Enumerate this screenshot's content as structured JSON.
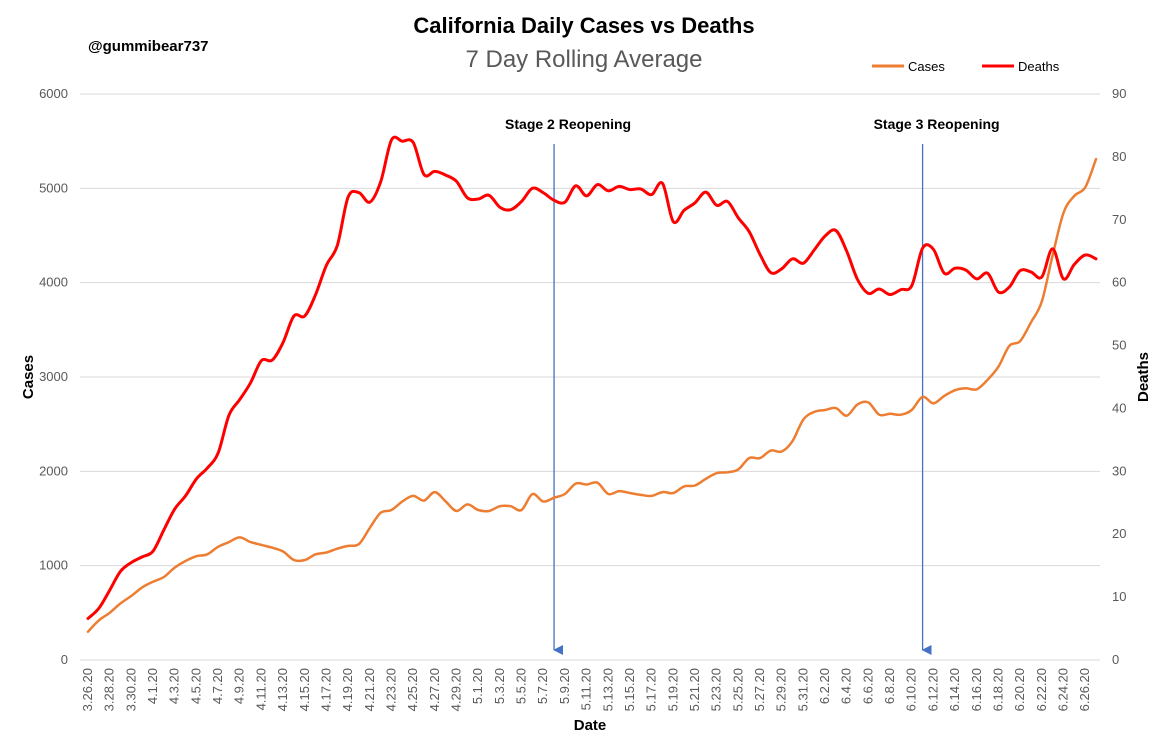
{
  "chart_data": {
    "type": "line",
    "title": "California Daily Cases vs Deaths",
    "subtitle": "7 Day Rolling Average",
    "handle": "@gummibear737",
    "xlabel": "Date",
    "ylabel": "Cases",
    "y2label": "Deaths",
    "ylim": [
      0,
      6000
    ],
    "y2lim": [
      0,
      90
    ],
    "yticks": [
      0,
      1000,
      2000,
      3000,
      4000,
      5000,
      6000
    ],
    "y2ticks": [
      0,
      10,
      20,
      30,
      40,
      50,
      60,
      70,
      80,
      90
    ],
    "grid": true,
    "legend_position": "top-right",
    "x": [
      "3.26.20",
      "3.27.20",
      "3.28.20",
      "3.29.20",
      "3.30.20",
      "3.31.20",
      "4.1.20",
      "4.2.20",
      "4.3.20",
      "4.4.20",
      "4.5.20",
      "4.6.20",
      "4.7.20",
      "4.8.20",
      "4.9.20",
      "4.10.20",
      "4.11.20",
      "4.12.20",
      "4.13.20",
      "4.14.20",
      "4.15.20",
      "4.16.20",
      "4.17.20",
      "4.18.20",
      "4.19.20",
      "4.20.20",
      "4.21.20",
      "4.22.20",
      "4.23.20",
      "4.24.20",
      "4.25.20",
      "4.26.20",
      "4.27.20",
      "4.28.20",
      "4.29.20",
      "4.30.20",
      "5.1.20",
      "5.2.20",
      "5.3.20",
      "5.4.20",
      "5.5.20",
      "5.6.20",
      "5.7.20",
      "5.8.20",
      "5.9.20",
      "5.10.20",
      "5.11.20",
      "5.12.20",
      "5.13.20",
      "5.14.20",
      "5.15.20",
      "5.16.20",
      "5.17.20",
      "5.18.20",
      "5.19.20",
      "5.20.20",
      "5.21.20",
      "5.22.20",
      "5.23.20",
      "5.24.20",
      "5.25.20",
      "5.26.20",
      "5.27.20",
      "5.28.20",
      "5.29.20",
      "5.30.20",
      "5.31.20",
      "6.1.20",
      "6.2.20",
      "6.3.20",
      "6.4.20",
      "6.5.20",
      "6.6.20",
      "6.7.20",
      "6.8.20",
      "6.9.20",
      "6.10.20",
      "6.11.20",
      "6.12.20",
      "6.13.20",
      "6.14.20",
      "6.15.20",
      "6.16.20",
      "6.17.20",
      "6.18.20",
      "6.19.20",
      "6.20.20",
      "6.21.20",
      "6.22.20",
      "6.23.20",
      "6.24.20",
      "6.25.20",
      "6.26.20",
      "6.27.20"
    ],
    "xticklabels": [
      "3.26.20",
      "3.28.20",
      "3.30.20",
      "4.1.20",
      "4.3.20",
      "4.5.20",
      "4.7.20",
      "4.9.20",
      "4.11.20",
      "4.13.20",
      "4.15.20",
      "4.17.20",
      "4.19.20",
      "4.21.20",
      "4.23.20",
      "4.25.20",
      "4.27.20",
      "4.29.20",
      "5.1.20",
      "5.3.20",
      "5.5.20",
      "5.7.20",
      "5.9.20",
      "5.11.20",
      "5.13.20",
      "5.15.20",
      "5.17.20",
      "5.19.20",
      "5.21.20",
      "5.23.20",
      "5.25.20",
      "5.27.20",
      "5.29.20",
      "5.31.20",
      "6.2.20",
      "6.4.20",
      "6.6.20",
      "6.8.20",
      "6.10.20",
      "6.12.20",
      "6.14.20",
      "6.16.20",
      "6.18.20",
      "6.20.20",
      "6.22.20",
      "6.24.20",
      "6.26.20"
    ],
    "series": [
      {
        "name": "Cases",
        "axis": "left",
        "color": "#ED7D31",
        "values": [
          300,
          420,
          500,
          600,
          680,
          770,
          830,
          880,
          980,
          1050,
          1100,
          1120,
          1200,
          1250,
          1300,
          1250,
          1220,
          1190,
          1150,
          1060,
          1060,
          1120,
          1140,
          1180,
          1210,
          1230,
          1400,
          1560,
          1590,
          1680,
          1740,
          1690,
          1780,
          1680,
          1580,
          1650,
          1590,
          1580,
          1630,
          1630,
          1590,
          1760,
          1680,
          1720,
          1760,
          1870,
          1860,
          1880,
          1760,
          1790,
          1770,
          1750,
          1740,
          1780,
          1770,
          1840,
          1850,
          1920,
          1980,
          1990,
          2020,
          2140,
          2140,
          2220,
          2210,
          2320,
          2550,
          2630,
          2650,
          2670,
          2590,
          2710,
          2730,
          2600,
          2610,
          2600,
          2650,
          2790,
          2720,
          2800,
          2860,
          2880,
          2870,
          2970,
          3110,
          3330,
          3380,
          3580,
          3800,
          4290,
          4740,
          4920,
          5010,
          5310
        ]
      },
      {
        "name": "Deaths",
        "axis": "right",
        "color": "#FF0000",
        "values": [
          6.6,
          8.2,
          11.1,
          14.1,
          15.5,
          16.4,
          17.3,
          20.7,
          24.0,
          26.1,
          28.8,
          30.5,
          32.9,
          38.9,
          41.4,
          44.1,
          47.6,
          47.7,
          50.5,
          54.7,
          54.7,
          58.1,
          62.8,
          65.9,
          73.6,
          74.3,
          72.8,
          76.0,
          82.7,
          82.5,
          82.3,
          77.2,
          77.7,
          77.1,
          76.1,
          73.5,
          73.3,
          73.9,
          72.0,
          71.6,
          72.9,
          75.0,
          74.3,
          73.1,
          72.8,
          75.4,
          73.8,
          75.6,
          74.6,
          75.3,
          74.8,
          74.9,
          74.0,
          75.8,
          69.7,
          71.5,
          72.7,
          74.4,
          72.3,
          72.9,
          70.3,
          68.1,
          64.5,
          61.6,
          62.2,
          63.8,
          63.1,
          65.2,
          67.4,
          68.3,
          65.0,
          60.5,
          58.3,
          59.0,
          58.1,
          58.9,
          59.5,
          65.5,
          65.3,
          61.5,
          62.3,
          62.0,
          60.6,
          61.5,
          58.5,
          59.3,
          61.9,
          61.7,
          60.9,
          65.4,
          60.6,
          62.9,
          64.4,
          63.8
        ]
      }
    ],
    "annotations": [
      {
        "label": "Stage 2 Reopening",
        "x": "5.8.20"
      },
      {
        "label": "Stage 3 Reopening",
        "x": "6.11.20"
      }
    ]
  }
}
